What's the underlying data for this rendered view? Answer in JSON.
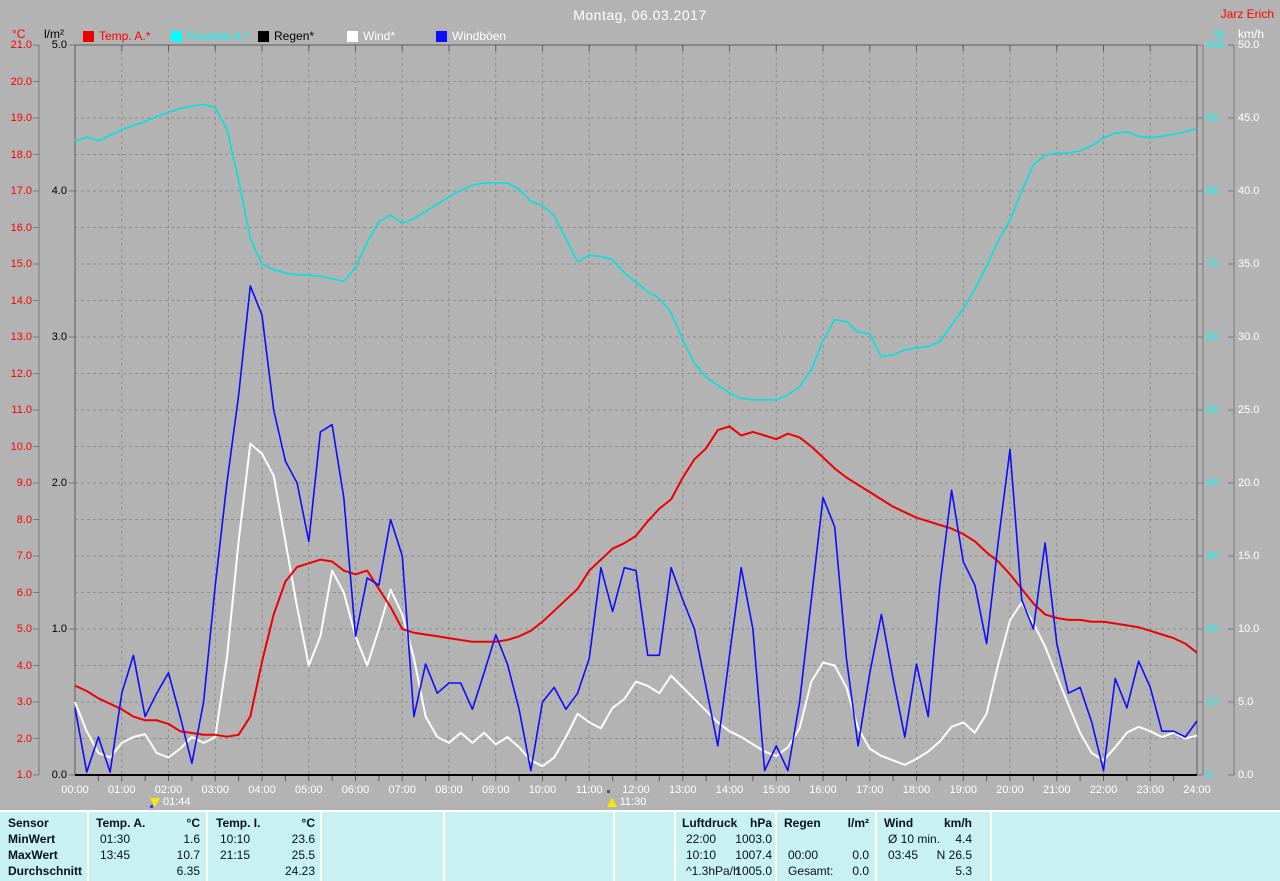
{
  "header": {
    "title": "Montag, 06.03.2017",
    "owner": "Jarz Erich"
  },
  "axes": {
    "left_temp": {
      "unit": "°C",
      "color": "#ff0000",
      "min": 1.0,
      "max": 21.0,
      "step": 1.0,
      "labels": [
        "21.0",
        "20.0",
        "19.0",
        "18.0",
        "17.0",
        "16.0",
        "15.0",
        "14.0",
        "13.0",
        "12.0",
        "11.0",
        "10.0",
        "9.0",
        "8.0",
        "7.0",
        "6.0",
        "5.0",
        "4.0",
        "3.0",
        "2.0",
        "1.0"
      ]
    },
    "left_rain": {
      "unit": "l/m²",
      "color": "#000000",
      "min": 0.0,
      "max": 5.0,
      "step": 1.0,
      "labels": [
        "5.0",
        "4.0",
        "3.0",
        "2.0",
        "1.0",
        "0.0"
      ]
    },
    "right_hum": {
      "unit": "%",
      "color": "#00ffff",
      "min": 0,
      "max": 100,
      "step": 10,
      "labels": [
        "100",
        "90",
        "80",
        "70",
        "60",
        "50",
        "40",
        "30",
        "20",
        "10",
        "0"
      ]
    },
    "right_wind": {
      "unit": "km/h",
      "color": "#ffffff",
      "min": 0.0,
      "max": 50.0,
      "step": 5.0,
      "labels": [
        "50.0",
        "45.0",
        "40.0",
        "35.0",
        "30.0",
        "25.0",
        "20.0",
        "15.0",
        "10.0",
        "5.0",
        "0.0"
      ]
    },
    "x": {
      "labels": [
        "00:00",
        "01:00",
        "02:00",
        "03:00",
        "04:00",
        "05:00",
        "06:00",
        "07:00",
        "08:00",
        "09:00",
        "10:00",
        "11:00",
        "12:00",
        "13:00",
        "14:00",
        "15:00",
        "16:00",
        "17:00",
        "18:00",
        "19:00",
        "20:00",
        "21:00",
        "22:00",
        "23:00",
        "24:00"
      ]
    }
  },
  "markers": [
    {
      "label": "01:44",
      "hours": 1.733,
      "icon": "arrow-down-marker-icon",
      "dir": "down",
      "dot_color": "#2244ff"
    },
    {
      "label": "11:30",
      "hours": 11.5,
      "icon": "arrow-up-marker-icon",
      "dir": "up",
      "dot_color": "#555555"
    }
  ],
  "chart_data": {
    "type": "line",
    "title": "Montag, 06.03.2017",
    "x_unit": "hours",
    "x_start": 0,
    "x_step": 0.25,
    "x_range": [
      0,
      24
    ],
    "grid": "dashed",
    "axis_ranges": {
      "temp_c": [
        1,
        21
      ],
      "rain_lm2": [
        0,
        5
      ],
      "humidity_pct": [
        0,
        100
      ],
      "wind_kmh": [
        0,
        50
      ]
    },
    "series": [
      {
        "name": "Feuchte A.*",
        "axis": "hum",
        "unit": "%",
        "color": "#00e2e2",
        "label_color": "#00ffff",
        "width": 1.6,
        "values": [
          86.8,
          87.4,
          86.9,
          87.6,
          88.4,
          89.0,
          89.5,
          90.2,
          90.8,
          91.3,
          91.6,
          91.9,
          91.4,
          88.5,
          81.5,
          73.5,
          70.0,
          69.2,
          68.8,
          68.5,
          68.5,
          68.3,
          68.0,
          67.6,
          69.5,
          73.0,
          75.8,
          76.7,
          75.6,
          76.2,
          77.2,
          78.2,
          79.2,
          80.1,
          80.8,
          81.1,
          81.1,
          81.1,
          80.2,
          78.6,
          78.0,
          76.6,
          73.5,
          70.3,
          71.2,
          71.0,
          70.6,
          68.8,
          67.5,
          66.2,
          65.3,
          63.3,
          59.6,
          56.4,
          54.5,
          53.4,
          52.3,
          51.6,
          51.4,
          51.4,
          51.4,
          52.1,
          53.2,
          55.5,
          59.5,
          62.4,
          62.1,
          60.7,
          60.4,
          57.3,
          57.6,
          58.2,
          58.5,
          58.7,
          59.4,
          61.6,
          63.9,
          66.6,
          69.7,
          73.2,
          76.0,
          80.0,
          83.6,
          84.9,
          85.2,
          85.2,
          85.5,
          86.2,
          87.3,
          87.9,
          88.1,
          87.5,
          87.3,
          87.5,
          87.8,
          88.1,
          88.6
        ]
      },
      {
        "name": "Wind*",
        "axis": "wind",
        "unit": "km/h",
        "color": "#ffffff",
        "label_color": "#ffffff",
        "width": 2,
        "values": [
          5.0,
          3.0,
          1.5,
          1.2,
          2.2,
          2.6,
          2.8,
          1.5,
          1.2,
          1.8,
          2.6,
          2.2,
          2.6,
          8.0,
          16.0,
          22.7,
          22.0,
          20.5,
          16.0,
          11.5,
          7.5,
          9.5,
          14.0,
          12.5,
          9.5,
          7.5,
          10.0,
          12.7,
          11.0,
          8.0,
          4.0,
          2.6,
          2.2,
          2.9,
          2.2,
          2.9,
          2.1,
          2.6,
          1.9,
          1.0,
          0.6,
          1.2,
          2.6,
          4.2,
          3.6,
          3.2,
          4.6,
          5.2,
          6.4,
          6.1,
          5.6,
          6.8,
          6.0,
          5.2,
          4.4,
          3.6,
          3.0,
          2.6,
          2.1,
          1.6,
          1.3,
          1.9,
          3.2,
          6.4,
          7.7,
          7.5,
          6.0,
          3.2,
          1.8,
          1.3,
          1.0,
          0.7,
          1.1,
          1.6,
          2.3,
          3.3,
          3.6,
          2.9,
          4.2,
          7.6,
          10.6,
          11.8,
          10.4,
          8.8,
          6.8,
          4.8,
          2.9,
          1.5,
          1.0,
          1.9,
          2.9,
          3.3,
          3.0,
          2.6,
          2.9,
          2.5,
          2.7
        ]
      },
      {
        "name": "Temp. A.*",
        "axis": "temp",
        "unit": "°C",
        "color": "#ee0000",
        "label_color": "#ff0000",
        "width": 2,
        "values": [
          3.45,
          3.3,
          3.1,
          2.95,
          2.8,
          2.6,
          2.5,
          2.5,
          2.4,
          2.2,
          2.15,
          2.1,
          2.1,
          2.05,
          2.1,
          2.6,
          4.1,
          5.4,
          6.3,
          6.7,
          6.8,
          6.9,
          6.85,
          6.6,
          6.5,
          6.6,
          6.1,
          5.6,
          5.0,
          4.9,
          4.85,
          4.8,
          4.75,
          4.7,
          4.65,
          4.65,
          4.65,
          4.7,
          4.8,
          4.95,
          5.2,
          5.5,
          5.8,
          6.1,
          6.6,
          6.9,
          7.2,
          7.35,
          7.55,
          7.95,
          8.3,
          8.55,
          9.15,
          9.65,
          9.95,
          10.45,
          10.55,
          10.3,
          10.4,
          10.3,
          10.2,
          10.35,
          10.25,
          10.0,
          9.7,
          9.4,
          9.15,
          8.95,
          8.75,
          8.55,
          8.35,
          8.2,
          8.05,
          7.95,
          7.85,
          7.75,
          7.6,
          7.4,
          7.1,
          6.85,
          6.5,
          6.1,
          5.7,
          5.4,
          5.3,
          5.25,
          5.25,
          5.2,
          5.2,
          5.15,
          5.1,
          5.05,
          4.95,
          4.85,
          4.75,
          4.6,
          4.35
        ]
      },
      {
        "name": "Windböen",
        "axis": "wind",
        "unit": "km/h",
        "color": "#0d0dff",
        "label_color": "#ffffff",
        "width": 1.6,
        "values": [
          4.6,
          0.2,
          2.6,
          0.2,
          5.6,
          8.2,
          4.0,
          5.6,
          7.0,
          4.0,
          0.8,
          5.0,
          13.0,
          20.0,
          26.0,
          33.5,
          31.5,
          25.0,
          21.5,
          20.0,
          16.0,
          23.5,
          24.0,
          19.0,
          9.5,
          13.5,
          13.0,
          17.5,
          15.0,
          4.0,
          7.6,
          5.6,
          6.3,
          6.3,
          4.5,
          7.0,
          9.6,
          7.6,
          4.5,
          0.3,
          5.0,
          6.0,
          4.5,
          5.6,
          8.0,
          14.2,
          11.2,
          14.2,
          14.0,
          8.2,
          8.2,
          14.2,
          12.0,
          10.0,
          6.0,
          2.0,
          8.2,
          14.2,
          10.0,
          0.3,
          2.0,
          0.3,
          5.0,
          12.0,
          19.0,
          17.0,
          8.0,
          2.0,
          7.0,
          11.0,
          6.6,
          2.6,
          7.6,
          4.0,
          13.0,
          19.5,
          14.6,
          13.0,
          9.0,
          16.0,
          22.3,
          12.0,
          10.0,
          15.9,
          9.0,
          5.6,
          6.0,
          3.6,
          0.3,
          6.6,
          4.6,
          7.8,
          6.0,
          3.0,
          3.0,
          2.6,
          3.7
        ]
      },
      {
        "name": "Regen*",
        "axis": "rain",
        "unit": "l/m²",
        "color": "#000000",
        "label_color": "#000000",
        "width": 2,
        "constant": 0.0
      }
    ]
  },
  "table": {
    "row_headers": [
      "Sensor",
      "MinWert",
      "MaxWert",
      "Durchschnitt"
    ],
    "columns": [
      {
        "name": "Temp. A.",
        "unit": "°C",
        "rows": [
          [
            "01:30",
            "1.6"
          ],
          [
            "13:45",
            "10.7"
          ],
          [
            "",
            "6.35"
          ]
        ]
      },
      {
        "name": "Temp. I.",
        "unit": "°C",
        "rows": [
          [
            "10:10",
            "23.6"
          ],
          [
            "21:15",
            "25.5"
          ],
          [
            "",
            "24.23"
          ]
        ]
      },
      {
        "name": "Luftdruck",
        "unit": "hPa",
        "rows": [
          [
            "22:00",
            "1003.0"
          ],
          [
            "10:10",
            "1007.4"
          ],
          [
            "^1.3hPa/h",
            "1005.0"
          ]
        ]
      },
      {
        "name": "Regen",
        "unit": "l/m²",
        "rows": [
          [
            "",
            ""
          ],
          [
            "00:00",
            "0.0"
          ],
          [
            "Gesamt:",
            "0.0"
          ]
        ]
      },
      {
        "name": "Wind",
        "unit": "km/h",
        "rows": [
          [
            "Ø 10 min.",
            "4.4"
          ],
          [
            "03:45",
            "N 26.5"
          ],
          [
            "",
            "5.3"
          ]
        ]
      }
    ]
  },
  "colors": {
    "background": "#b3b3b3",
    "grid": "#8e8e8e",
    "plot_border": "#5c5c5c",
    "axis_spine": "#7a7a7a",
    "table_bg": "#c9f1f1",
    "table_separator": "#ffffff",
    "title_text": "#ffffff",
    "owner_text": "#ff0000",
    "marker_yellow": "#ffe600"
  }
}
